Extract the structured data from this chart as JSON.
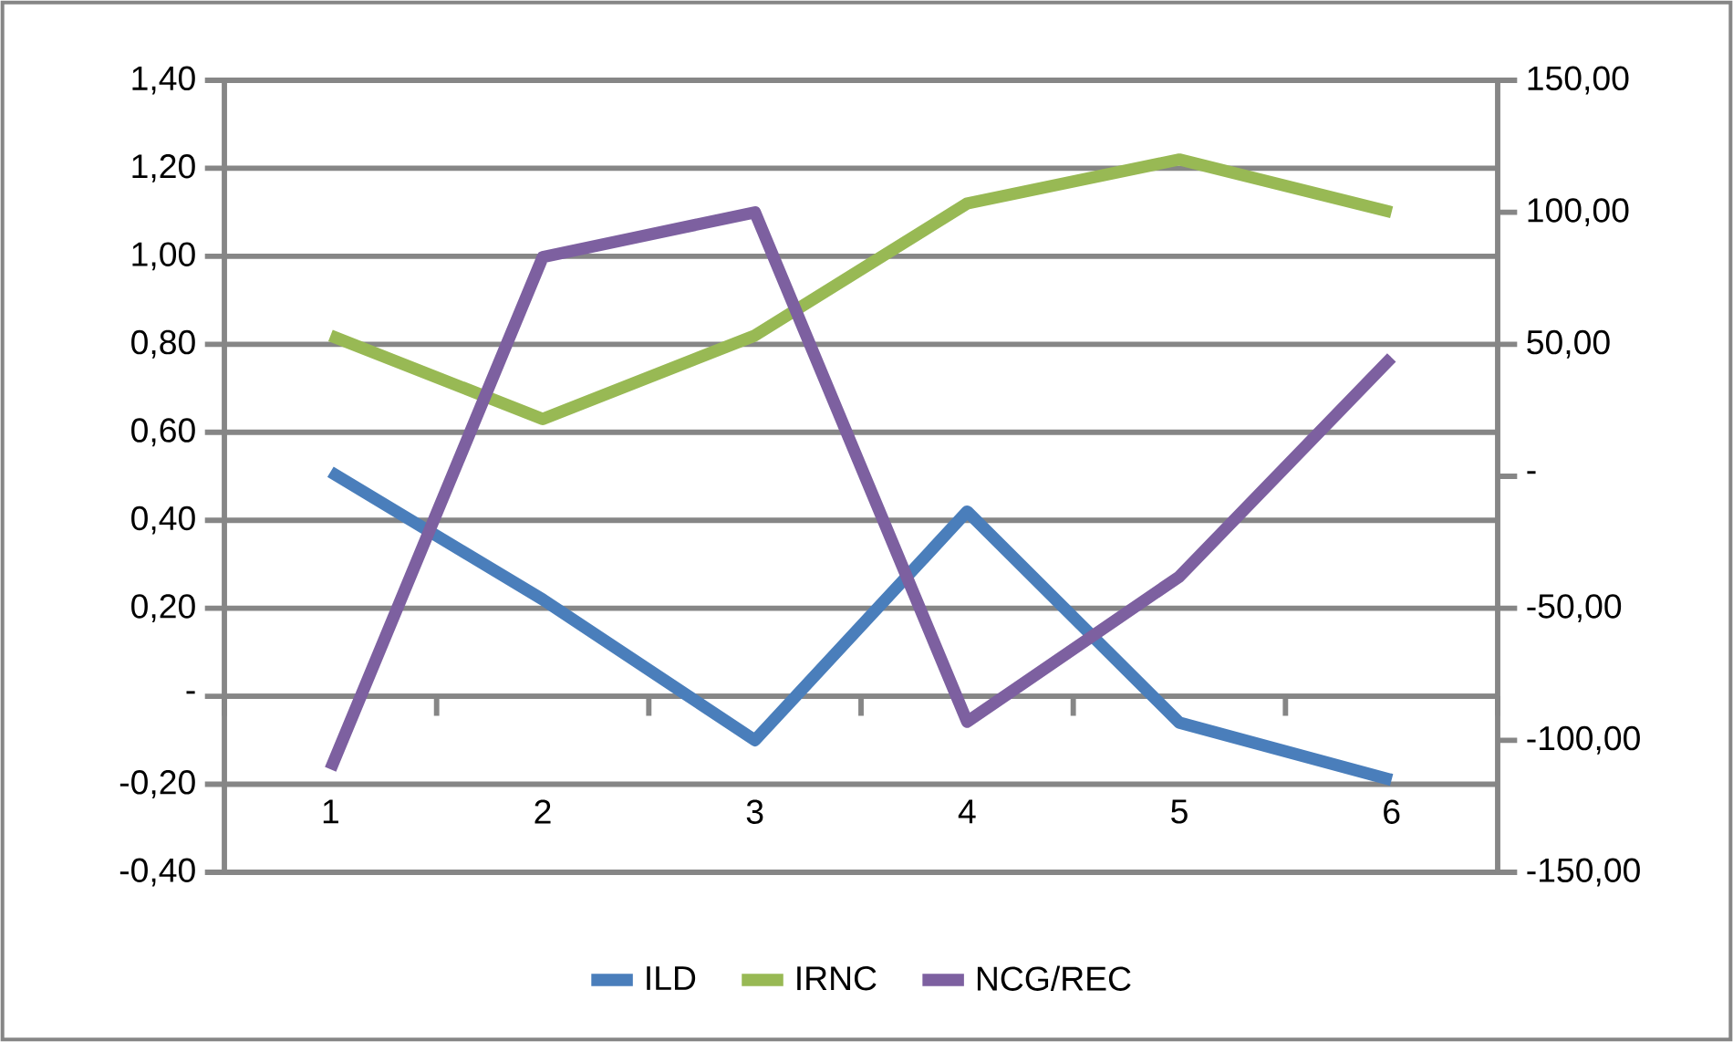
{
  "chart_data": {
    "type": "line",
    "categories": [
      "1",
      "2",
      "3",
      "4",
      "5",
      "6"
    ],
    "series": [
      {
        "name": "ILD",
        "color": "#4a7ebb",
        "values": [
          0.51,
          0.22,
          -0.1,
          0.42,
          -0.06,
          -0.19
        ]
      },
      {
        "name": "IRNC",
        "color": "#98b954",
        "values": [
          0.82,
          0.63,
          0.82,
          1.12,
          1.22,
          1.1
        ]
      },
      {
        "name": "NCG/REC",
        "color": "#7d60a0",
        "axis": "y2",
        "values": [
          -111,
          83,
          100,
          -93,
          -38,
          45
        ]
      }
    ],
    "ylim": [
      -0.4,
      1.4
    ],
    "yticks": [
      {
        "value": -0.4,
        "label": "-0,40"
      },
      {
        "value": -0.2,
        "label": "-0,20"
      },
      {
        "value": 0,
        "label": "-"
      },
      {
        "value": 0.2,
        "label": "0,20"
      },
      {
        "value": 0.4,
        "label": "0,40"
      },
      {
        "value": 0.6,
        "label": "0,60"
      },
      {
        "value": 0.8,
        "label": "0,80"
      },
      {
        "value": 1.0,
        "label": "1,00"
      },
      {
        "value": 1.2,
        "label": "1,20"
      },
      {
        "value": 1.4,
        "label": "1,40"
      }
    ],
    "y2lim": [
      -150,
      150
    ],
    "y2ticks": [
      {
        "value": -150,
        "label": "-150,00"
      },
      {
        "value": -100,
        "label": "-100,00"
      },
      {
        "value": -50,
        "label": "-50,00"
      },
      {
        "value": 0,
        "label": "-"
      },
      {
        "value": 50,
        "label": "50,00"
      },
      {
        "value": 100,
        "label": "100,00"
      },
      {
        "value": 150,
        "label": "150,00"
      }
    ],
    "grid": "y",
    "legend": "bottom",
    "marker": "none",
    "line_style": "solid"
  }
}
